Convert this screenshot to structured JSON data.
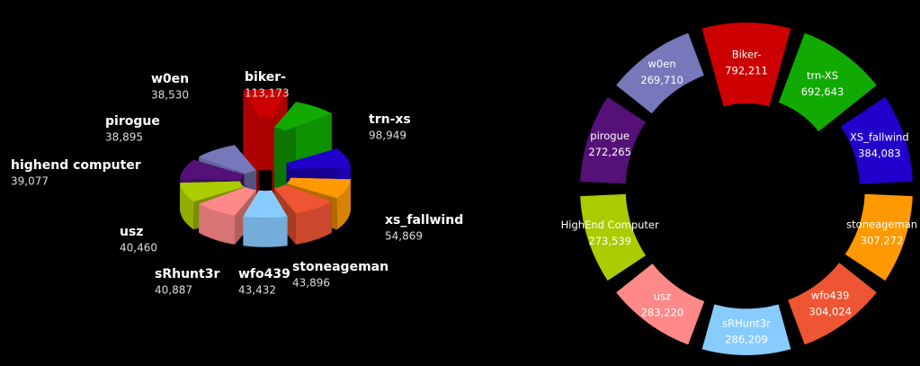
{
  "chart_data": [
    {
      "type": "polar3d",
      "categories": [
        "biker-",
        "trn-xs",
        "xs_fallwind",
        "stoneageman",
        "wfo439",
        "sRhunt3r",
        "usz",
        "highend computer",
        "pirogue",
        "w0en"
      ],
      "values": [
        113173,
        98949,
        54869,
        43896,
        43432,
        40887,
        40460,
        39077,
        38895,
        38530
      ],
      "value_labels": [
        "113,173",
        "98,949",
        "54,869",
        "43,896",
        "43,432",
        "40,887",
        "40,460",
        "39,077",
        "38,895",
        "38,530"
      ],
      "colors": [
        "#cc0000",
        "#11aa00",
        "#2200cc",
        "#ff9900",
        "#ee5533",
        "#88ccff",
        "#ff8888",
        "#aacc00",
        "#551177",
        "#7777bb"
      ]
    },
    {
      "type": "polar",
      "categories": [
        "Biker-",
        "trn-XS",
        "XS_fallwind",
        "stoneageman",
        "wfo439",
        "sRHunt3r",
        "usz",
        "HighEnd Computer",
        "pirogue",
        "w0en"
      ],
      "values": [
        792211,
        692643,
        384083,
        307272,
        304024,
        286209,
        283220,
        273539,
        272265,
        269710
      ],
      "value_labels": [
        "792,211",
        "692,643",
        "384,083",
        "307,272",
        "304,024",
        "286,209",
        "283,220",
        "273,539",
        "272,265",
        "269,710"
      ],
      "colors": [
        "#cc0000",
        "#11aa00",
        "#2200cc",
        "#ff9900",
        "#ee5533",
        "#88ccff",
        "#ff8888",
        "#aacc00",
        "#551177",
        "#7777bb"
      ]
    }
  ]
}
